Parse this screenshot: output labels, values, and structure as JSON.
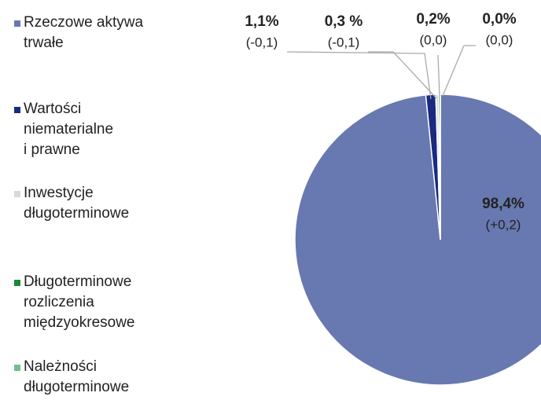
{
  "chart_data": {
    "type": "pie",
    "categories": [
      "Rzeczowe aktywa\ntrwałe",
      "Wartości\nniematerialne\ni prawne",
      "Inwestycje\ndługoterminowe",
      "Długoterminowe\nrozliczenia\nmiędzyokresowe",
      "Należności\ndługoterminowe"
    ],
    "values": [
      98.4,
      1.1,
      0.3,
      0.2,
      0.0
    ],
    "value_labels": [
      "98,4%",
      "1,1%",
      "0,3 %",
      "0,2%",
      "0,0%"
    ],
    "change_labels": [
      "(+0,2)",
      "(-0,1)",
      "(-0,1)",
      "(0,0)",
      "(0,0)"
    ],
    "colors": [
      "#6878b0",
      "#1a2a80",
      "#d9d9d9",
      "#1a8a3a",
      "#70c090"
    ]
  }
}
